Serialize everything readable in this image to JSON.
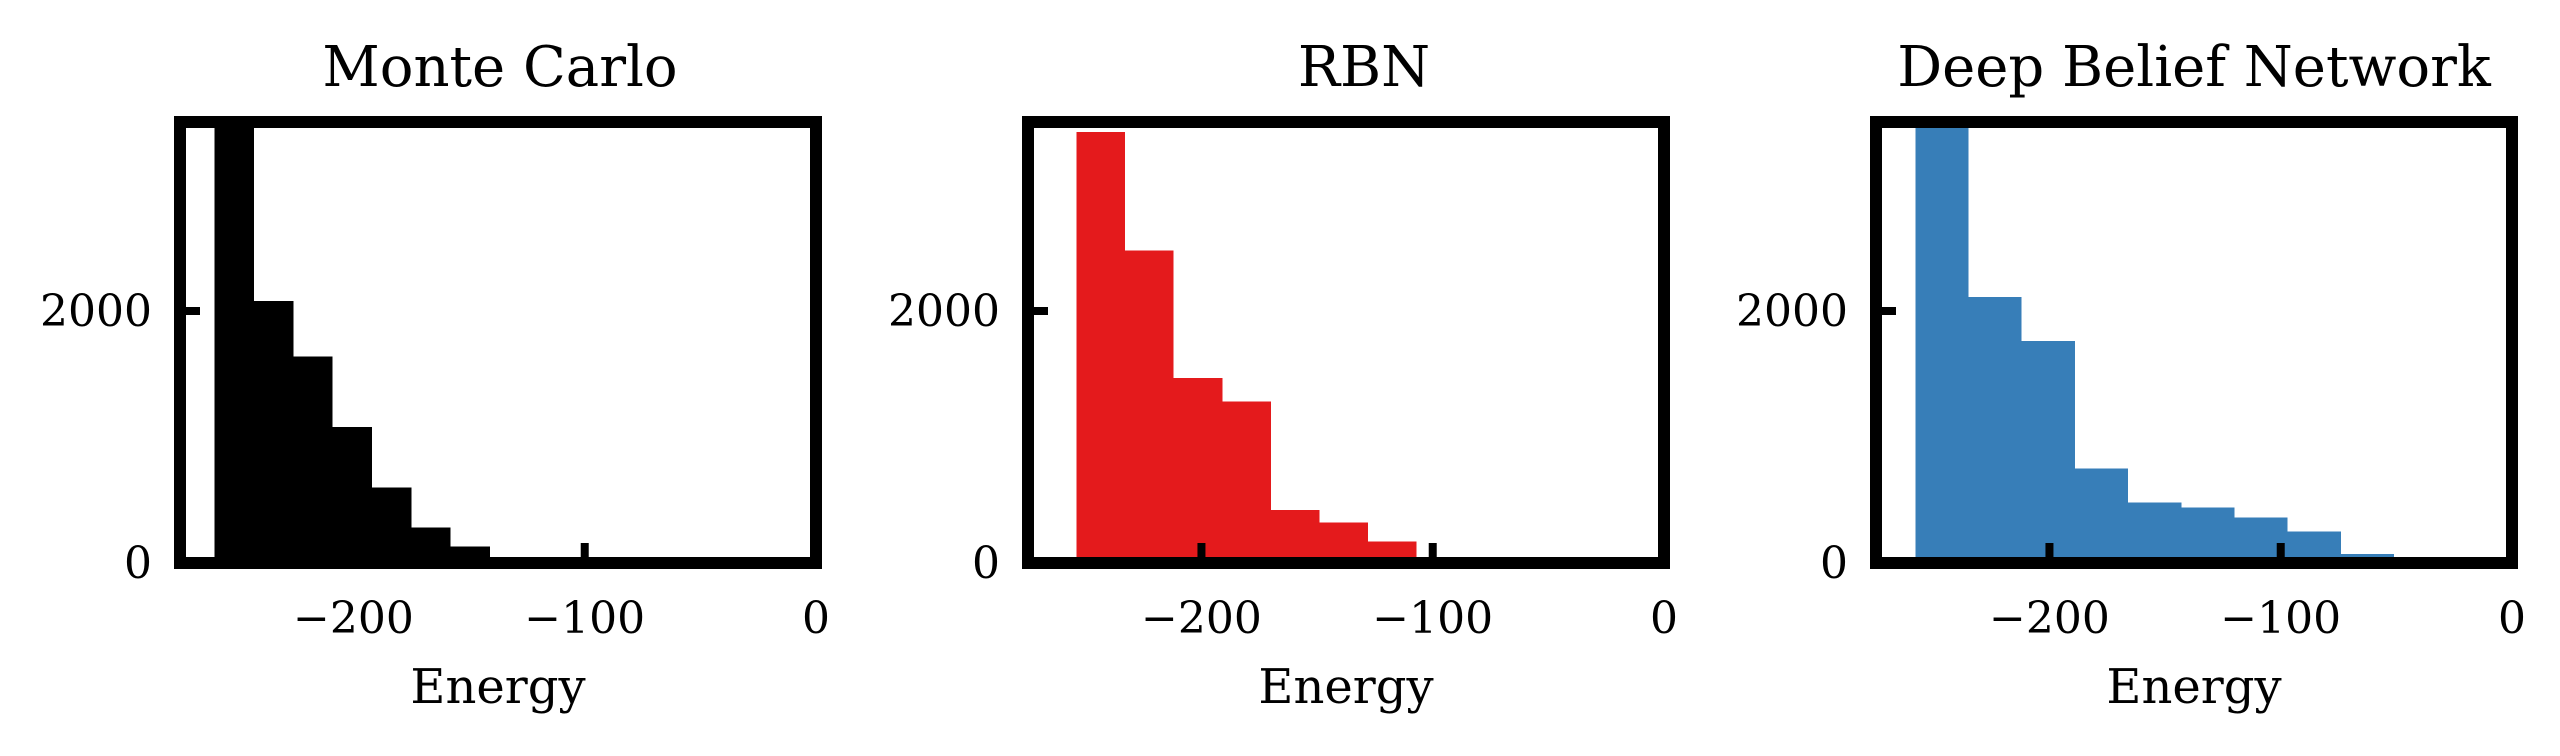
{
  "figure": {
    "subplots": [
      {
        "title": "Monte Carlo"
      },
      {
        "title": "RBN"
      },
      {
        "title": "Deep Belief Network"
      }
    ]
  },
  "chart_data": [
    {
      "type": "bar",
      "title": "Monte Carlo",
      "xlabel": "Energy",
      "ylabel": "",
      "xlim": [
        -275,
        0
      ],
      "ylim": [
        0,
        3500
      ],
      "xticks": [
        -200,
        -100,
        0
      ],
      "xtick_labels": [
        "−200",
        "−100",
        "0"
      ],
      "yticks": [
        0,
        2000
      ],
      "ytick_labels": [
        "0",
        "2000"
      ],
      "grid": false,
      "color": "#000000",
      "bins": [
        {
          "x0": -260,
          "x1": -243,
          "value": 3500
        },
        {
          "x0": -243,
          "x1": -226,
          "value": 2080
        },
        {
          "x0": -226,
          "x1": -209,
          "value": 1640
        },
        {
          "x0": -209,
          "x1": -192,
          "value": 1080
        },
        {
          "x0": -192,
          "x1": -175,
          "value": 600
        },
        {
          "x0": -175,
          "x1": -158,
          "value": 280
        },
        {
          "x0": -158,
          "x1": -141,
          "value": 130
        },
        {
          "x0": -141,
          "x1": -124,
          "value": 40
        },
        {
          "x0": -124,
          "x1": -107,
          "value": 20
        },
        {
          "x0": -107,
          "x1": -90,
          "value": 10
        },
        {
          "x0": -90,
          "x1": -73,
          "value": 5
        },
        {
          "x0": -73,
          "x1": -56,
          "value": 3
        },
        {
          "x0": -56,
          "x1": -39,
          "value": 2
        },
        {
          "x0": -39,
          "x1": -22,
          "value": 1
        },
        {
          "x0": -22,
          "x1": -5,
          "value": 1
        }
      ]
    },
    {
      "type": "bar",
      "title": "RBN",
      "xlabel": "Energy",
      "ylabel": "",
      "xlim": [
        -275,
        0
      ],
      "ylim": [
        0,
        3500
      ],
      "xticks": [
        -200,
        -100,
        0
      ],
      "xtick_labels": [
        "−200",
        "−100",
        "0"
      ],
      "yticks": [
        0,
        2000
      ],
      "ytick_labels": [
        "0",
        "2000"
      ],
      "grid": false,
      "color": "#e41a1c",
      "bins": [
        {
          "x0": -254,
          "x1": -233,
          "value": 3420
        },
        {
          "x0": -233,
          "x1": -212,
          "value": 2480
        },
        {
          "x0": -212,
          "x1": -191,
          "value": 1470
        },
        {
          "x0": -191,
          "x1": -170,
          "value": 1280
        },
        {
          "x0": -170,
          "x1": -149,
          "value": 420
        },
        {
          "x0": -149,
          "x1": -128,
          "value": 320
        },
        {
          "x0": -128,
          "x1": -107,
          "value": 170
        },
        {
          "x0": -107,
          "x1": -86,
          "value": 8
        },
        {
          "x0": -86,
          "x1": -65,
          "value": 4
        },
        {
          "x0": -65,
          "x1": -44,
          "value": 2
        }
      ]
    },
    {
      "type": "bar",
      "title": "Deep Belief Network",
      "xlabel": "Energy",
      "ylabel": "",
      "xlim": [
        -275,
        0
      ],
      "ylim": [
        0,
        3500
      ],
      "xticks": [
        -200,
        -100,
        0
      ],
      "xtick_labels": [
        "−200",
        "−100",
        "0"
      ],
      "yticks": [
        0,
        2000
      ],
      "ytick_labels": [
        "0",
        "2000"
      ],
      "grid": false,
      "color": "#377eb8",
      "bins": [
        {
          "x0": -258,
          "x1": -235,
          "value": 3500
        },
        {
          "x0": -235,
          "x1": -212,
          "value": 2110
        },
        {
          "x0": -212,
          "x1": -189,
          "value": 1760
        },
        {
          "x0": -189,
          "x1": -166,
          "value": 750
        },
        {
          "x0": -166,
          "x1": -143,
          "value": 480
        },
        {
          "x0": -143,
          "x1": -120,
          "value": 440
        },
        {
          "x0": -120,
          "x1": -97,
          "value": 360
        },
        {
          "x0": -97,
          "x1": -74,
          "value": 250
        },
        {
          "x0": -74,
          "x1": -51,
          "value": 70
        },
        {
          "x0": -51,
          "x1": -28,
          "value": 5
        }
      ]
    }
  ]
}
